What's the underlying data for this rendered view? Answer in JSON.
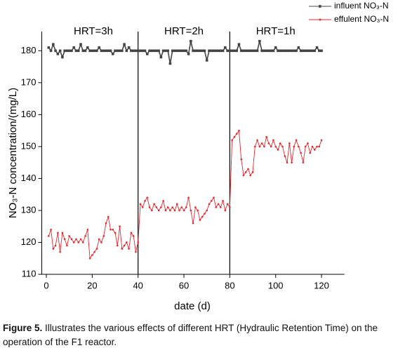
{
  "chart_data": {
    "type": "line",
    "xlabel": "date (d)",
    "ylabel": "NO₃-N concentration/(mg/L)",
    "x": [
      1,
      2,
      3,
      4,
      5,
      6,
      7,
      8,
      9,
      10,
      11,
      12,
      13,
      14,
      15,
      16,
      17,
      18,
      19,
      20,
      21,
      22,
      23,
      24,
      25,
      26,
      27,
      28,
      29,
      30,
      31,
      32,
      33,
      34,
      35,
      36,
      37,
      38,
      39,
      40,
      41,
      42,
      43,
      44,
      45,
      46,
      47,
      48,
      49,
      50,
      51,
      52,
      53,
      54,
      55,
      56,
      57,
      58,
      59,
      60,
      61,
      62,
      63,
      64,
      65,
      66,
      67,
      68,
      69,
      70,
      71,
      72,
      73,
      74,
      75,
      76,
      77,
      78,
      79,
      80,
      81,
      82,
      83,
      84,
      85,
      86,
      87,
      88,
      89,
      90,
      91,
      92,
      93,
      94,
      95,
      96,
      97,
      98,
      99,
      100,
      101,
      102,
      103,
      104,
      105,
      106,
      107,
      108,
      109,
      110,
      111,
      112,
      113,
      114,
      115,
      116,
      117,
      118,
      119,
      120
    ],
    "series": [
      {
        "name": "influent NO₃-N",
        "color": "#444444",
        "marker": "square",
        "values": [
          181,
          180,
          182,
          180,
          179,
          180,
          178,
          180,
          180,
          180,
          180,
          181,
          180,
          180,
          182,
          180,
          180,
          181,
          180,
          180,
          180,
          180,
          181,
          180,
          180,
          180,
          180,
          180,
          179,
          180,
          180,
          180,
          180,
          182,
          180,
          181,
          180,
          180,
          180,
          180,
          180,
          180,
          180,
          179,
          180,
          180,
          180,
          180,
          180,
          178,
          180,
          180,
          180,
          176,
          180,
          180,
          180,
          180,
          180,
          180,
          180,
          179,
          183,
          180,
          180,
          180,
          180,
          180,
          180,
          177,
          180,
          180,
          180,
          180,
          180,
          180,
          180,
          181,
          180,
          180,
          180,
          180,
          180,
          182,
          180,
          180,
          180,
          180,
          180,
          180,
          180,
          180,
          183,
          180,
          180,
          180,
          180,
          180,
          180,
          181,
          180,
          180,
          180,
          180,
          180,
          180,
          180,
          180,
          180,
          181,
          180,
          180,
          180,
          180,
          180,
          180,
          180,
          181,
          180,
          180
        ]
      },
      {
        "name": "effulent NO₃-N",
        "color": "#e8262b",
        "marker": "dot",
        "values": [
          122,
          124,
          118,
          119,
          123,
          117,
          123,
          121,
          119,
          122,
          121,
          120,
          121,
          120,
          121,
          120,
          122,
          124,
          115,
          116,
          117,
          118,
          121,
          120,
          122,
          126,
          128,
          124,
          124,
          123,
          119,
          125,
          118,
          119,
          120,
          118,
          123,
          122,
          117,
          120,
          132,
          131,
          133,
          134,
          131,
          130,
          132,
          131,
          130,
          131,
          133,
          130,
          131,
          130,
          131,
          130,
          132,
          130,
          131,
          130,
          131,
          134,
          130,
          126,
          131,
          130,
          127,
          128,
          129,
          130,
          132,
          133,
          134,
          131,
          132,
          131,
          133,
          130,
          132,
          131,
          152,
          153,
          154,
          155,
          146,
          141,
          142,
          143,
          141,
          142,
          150,
          152,
          150,
          151,
          150,
          153,
          151,
          150,
          152,
          150,
          149,
          151,
          150,
          147,
          145,
          151,
          145,
          150,
          152,
          150,
          148,
          145,
          150,
          151,
          148,
          150,
          149,
          150,
          150,
          152
        ]
      }
    ],
    "xlim": [
      -2,
      130
    ],
    "ylim": [
      110,
      186
    ],
    "xticks": [
      0,
      20,
      40,
      60,
      80,
      100,
      120
    ],
    "yticks": [
      110,
      120,
      130,
      140,
      150,
      160,
      170,
      180
    ],
    "vlines": [
      40,
      80
    ],
    "annotations": [
      "HRT=3h",
      "HRT=2h",
      "HRT=1h"
    ],
    "legend": "top-right"
  },
  "caption": {
    "label": "Figure 5.",
    "text": "Illustrates the various effects of different HRT (Hydraulic Retention Time) on the operation of the F1 reactor."
  }
}
